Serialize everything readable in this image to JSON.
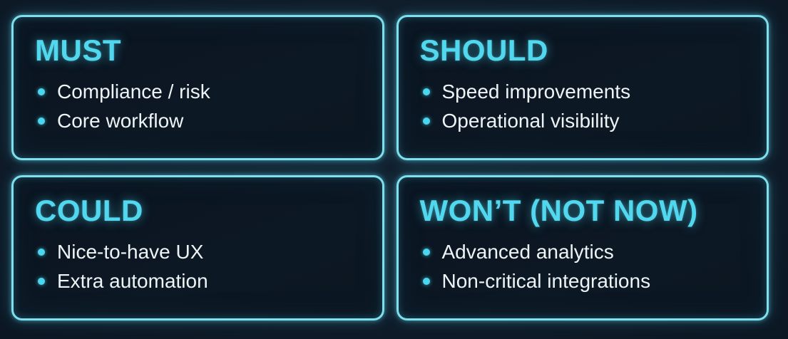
{
  "page": {
    "kind": "moscow-prioritization-matrix",
    "background_color": "#101c29"
  },
  "theme": {
    "border_color": "#7ce0ee",
    "title_color": "#52d8ee",
    "bullet_dot_color": "#49d6ee",
    "body_text_color": "#eef3f6",
    "card_fill_color": "#0b1622"
  },
  "quadrants": [
    {
      "id": "must",
      "title": "MUST",
      "items": [
        "Compliance / risk",
        "Core workflow"
      ]
    },
    {
      "id": "should",
      "title": "SHOULD",
      "items": [
        "Speed improvements",
        "Operational visibility"
      ]
    },
    {
      "id": "could",
      "title": "COULD",
      "items": [
        "Nice-to-have UX",
        "Extra automation"
      ]
    },
    {
      "id": "wont",
      "title": "WON’T (NOT NOW)",
      "items": [
        "Advanced analytics",
        "Non-critical integrations"
      ]
    }
  ]
}
